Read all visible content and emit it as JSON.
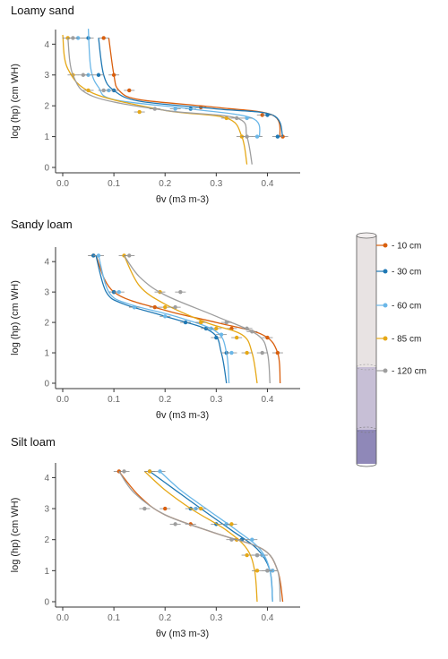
{
  "chart_data": [
    {
      "type": "line",
      "title": "Loamy sand",
      "xlabel": "θv (m3 m-3)",
      "ylabel": "log (hp) (cm WH)",
      "xlim": [
        0,
        0.45
      ],
      "ylim": [
        0,
        4.3
      ],
      "xticks": [
        "0.0",
        "0.1",
        "0.2",
        "0.3",
        "0.4"
      ],
      "yticks": [
        "0",
        "1",
        "2",
        "3",
        "4"
      ],
      "series": [
        {
          "name": "- 10 cm",
          "values": [
            [
              0.425,
              1.0
            ],
            [
              0.41,
              1.7
            ],
            [
              0.3,
              1.95
            ],
            [
              0.15,
              2.2
            ],
            [
              0.11,
              2.5
            ],
            [
              0.1,
              3.0
            ],
            [
              0.09,
              4.2
            ]
          ],
          "points": [
            [
              0.43,
              1.0
            ],
            [
              0.39,
              1.7
            ],
            [
              0.27,
              1.95
            ],
            [
              0.13,
              2.5
            ],
            [
              0.1,
              3.0
            ],
            [
              0.08,
              4.2
            ]
          ]
        },
        {
          "name": "- 30 cm",
          "values": [
            [
              0.43,
              1.0
            ],
            [
              0.41,
              1.7
            ],
            [
              0.3,
              1.9
            ],
            [
              0.15,
              2.15
            ],
            [
              0.1,
              2.5
            ],
            [
              0.08,
              3.0
            ],
            [
              0.07,
              4.2
            ]
          ],
          "points": [
            [
              0.42,
              1.0
            ],
            [
              0.4,
              1.7
            ],
            [
              0.25,
              1.9
            ],
            [
              0.1,
              2.5
            ],
            [
              0.07,
              3.0
            ],
            [
              0.05,
              4.2
            ]
          ]
        },
        {
          "name": "- 60 cm",
          "values": [
            [
              0.385,
              1.0
            ],
            [
              0.37,
              1.6
            ],
            [
              0.25,
              1.9
            ],
            [
              0.1,
              2.2
            ],
            [
              0.07,
              2.6
            ],
            [
              0.055,
              3.2
            ],
            [
              0.05,
              4.5
            ]
          ],
          "points": [
            [
              0.38,
              1.0
            ],
            [
              0.36,
              1.6
            ],
            [
              0.22,
              1.9
            ],
            [
              0.09,
              2.5
            ],
            [
              0.05,
              3.0
            ],
            [
              0.03,
              4.2
            ]
          ]
        },
        {
          "name": "- 85 cm",
          "values": [
            [
              0.36,
              0.1
            ],
            [
              0.35,
              1.0
            ],
            [
              0.32,
              1.6
            ],
            [
              0.2,
              1.85
            ],
            [
              0.06,
              2.4
            ],
            [
              0.01,
              3.2
            ],
            [
              0.0,
              4.3
            ]
          ],
          "points": [
            [
              0.35,
              1.0
            ],
            [
              0.32,
              1.6
            ],
            [
              0.15,
              1.8
            ],
            [
              0.05,
              2.5
            ],
            [
              0.02,
              3.0
            ],
            [
              0.01,
              4.2
            ]
          ]
        },
        {
          "name": "- 120 cm",
          "values": [
            [
              0.37,
              0.1
            ],
            [
              0.36,
              1.0
            ],
            [
              0.34,
              1.6
            ],
            [
              0.2,
              1.85
            ],
            [
              0.06,
              2.3
            ],
            [
              0.02,
              3.0
            ],
            [
              0.01,
              4.2
            ]
          ],
          "points": [
            [
              0.36,
              1.0
            ],
            [
              0.34,
              1.6
            ],
            [
              0.18,
              1.9
            ],
            [
              0.08,
              2.5
            ],
            [
              0.04,
              3.0
            ],
            [
              0.02,
              4.2
            ]
          ]
        }
      ]
    },
    {
      "type": "line",
      "title": "Sandy loam",
      "xlabel": "θv (m3 m-3)",
      "ylabel": "log (hp) (cm WH)",
      "xlim": [
        0,
        0.45
      ],
      "ylim": [
        0,
        4.3
      ],
      "xticks": [
        "0.0",
        "0.1",
        "0.2",
        "0.3",
        "0.4"
      ],
      "yticks": [
        "0",
        "1",
        "2",
        "3",
        "4"
      ],
      "series": [
        {
          "name": "- 10 cm",
          "values": [
            [
              0.425,
              0.0
            ],
            [
              0.42,
              1.0
            ],
            [
              0.39,
              1.6
            ],
            [
              0.3,
              2.0
            ],
            [
              0.2,
              2.4
            ],
            [
              0.1,
              3.0
            ],
            [
              0.065,
              4.2
            ]
          ],
          "points": [
            [
              0.42,
              1.0
            ],
            [
              0.4,
              1.5
            ],
            [
              0.33,
              1.8
            ],
            [
              0.27,
              2.0
            ],
            [
              0.18,
              2.5
            ],
            [
              0.1,
              3.0
            ],
            [
              0.06,
              4.2
            ]
          ]
        },
        {
          "name": "- 30 cm",
          "values": [
            [
              0.32,
              0.0
            ],
            [
              0.31,
              1.0
            ],
            [
              0.29,
              1.7
            ],
            [
              0.2,
              2.2
            ],
            [
              0.12,
              2.6
            ],
            [
              0.085,
              3.0
            ],
            [
              0.065,
              4.2
            ]
          ],
          "points": [
            [
              0.32,
              1.0
            ],
            [
              0.3,
              1.5
            ],
            [
              0.28,
              1.8
            ],
            [
              0.24,
              2.0
            ],
            [
              0.14,
              2.5
            ],
            [
              0.1,
              3.0
            ],
            [
              0.06,
              4.2
            ]
          ]
        },
        {
          "name": "- 60 cm",
          "values": [
            [
              0.325,
              0.0
            ],
            [
              0.32,
              1.0
            ],
            [
              0.3,
              1.7
            ],
            [
              0.22,
              2.2
            ],
            [
              0.13,
              2.6
            ],
            [
              0.09,
              3.0
            ],
            [
              0.07,
              4.2
            ]
          ],
          "points": [
            [
              0.33,
              1.0
            ],
            [
              0.31,
              1.6
            ],
            [
              0.29,
              1.8
            ],
            [
              0.2,
              2.2
            ],
            [
              0.14,
              2.5
            ],
            [
              0.11,
              3.0
            ],
            [
              0.07,
              4.2
            ]
          ]
        },
        {
          "name": "- 85 cm",
          "values": [
            [
              0.38,
              0.0
            ],
            [
              0.37,
              1.0
            ],
            [
              0.35,
              1.6
            ],
            [
              0.28,
              2.0
            ],
            [
              0.2,
              2.6
            ],
            [
              0.15,
              3.2
            ],
            [
              0.12,
              4.2
            ]
          ],
          "points": [
            [
              0.36,
              1.0
            ],
            [
              0.34,
              1.5
            ],
            [
              0.3,
              1.8
            ],
            [
              0.27,
              2.0
            ],
            [
              0.2,
              2.5
            ],
            [
              0.19,
              3.0
            ],
            [
              0.12,
              4.2
            ]
          ]
        },
        {
          "name": "- 120 cm",
          "values": [
            [
              0.405,
              0.0
            ],
            [
              0.4,
              1.0
            ],
            [
              0.38,
              1.6
            ],
            [
              0.3,
              2.2
            ],
            [
              0.2,
              2.9
            ],
            [
              0.15,
              3.5
            ],
            [
              0.12,
              4.2
            ]
          ],
          "points": [
            [
              0.39,
              1.0
            ],
            [
              0.37,
              1.7
            ],
            [
              0.36,
              1.8
            ],
            [
              0.32,
              2.0
            ],
            [
              0.22,
              2.5
            ],
            [
              0.23,
              3.0
            ],
            [
              0.13,
              4.2
            ]
          ]
        }
      ]
    },
    {
      "type": "line",
      "title": "Silt loam",
      "xlabel": "θv (m3 m-3)",
      "ylabel": "log (hp) (cm WH)",
      "xlim": [
        0,
        0.45
      ],
      "ylim": [
        0,
        4.3
      ],
      "xticks": [
        "0.0",
        "0.1",
        "0.2",
        "0.3",
        "0.4"
      ],
      "yticks": [
        "0",
        "1",
        "2",
        "3",
        "4"
      ],
      "series": [
        {
          "name": "- 10 cm",
          "values": [
            [
              0.43,
              0.0
            ],
            [
              0.42,
              1.0
            ],
            [
              0.39,
              1.7
            ],
            [
              0.3,
              2.2
            ],
            [
              0.2,
              2.8
            ],
            [
              0.15,
              3.4
            ],
            [
              0.11,
              4.2
            ]
          ],
          "points": [
            [
              0.41,
              1.0
            ],
            [
              0.39,
              1.5
            ],
            [
              0.34,
              2.0
            ],
            [
              0.25,
              2.5
            ],
            [
              0.2,
              3.0
            ],
            [
              0.11,
              4.2
            ]
          ]
        },
        {
          "name": "- 30 cm",
          "values": [
            [
              0.41,
              0.0
            ],
            [
              0.405,
              1.0
            ],
            [
              0.38,
              1.7
            ],
            [
              0.33,
              2.3
            ],
            [
              0.27,
              3.0
            ],
            [
              0.22,
              3.6
            ],
            [
              0.17,
              4.2
            ]
          ],
          "points": [
            [
              0.4,
              1.0
            ],
            [
              0.38,
              1.5
            ],
            [
              0.35,
              2.0
            ],
            [
              0.3,
              2.5
            ],
            [
              0.25,
              3.0
            ],
            [
              0.17,
              4.2
            ]
          ]
        },
        {
          "name": "- 60 cm",
          "values": [
            [
              0.41,
              0.0
            ],
            [
              0.405,
              1.0
            ],
            [
              0.385,
              1.7
            ],
            [
              0.34,
              2.3
            ],
            [
              0.28,
              3.0
            ],
            [
              0.23,
              3.6
            ],
            [
              0.19,
              4.2
            ]
          ],
          "points": [
            [
              0.41,
              1.0
            ],
            [
              0.39,
              1.5
            ],
            [
              0.37,
              2.0
            ],
            [
              0.32,
              2.5
            ],
            [
              0.26,
              3.0
            ],
            [
              0.19,
              4.2
            ]
          ]
        },
        {
          "name": "- 85 cm",
          "values": [
            [
              0.38,
              0.0
            ],
            [
              0.375,
              1.0
            ],
            [
              0.36,
              1.7
            ],
            [
              0.32,
              2.3
            ],
            [
              0.25,
              3.0
            ],
            [
              0.2,
              3.6
            ],
            [
              0.16,
              4.2
            ]
          ],
          "points": [
            [
              0.38,
              1.0
            ],
            [
              0.36,
              1.5
            ],
            [
              0.34,
              2.0
            ],
            [
              0.33,
              2.5
            ],
            [
              0.27,
              3.0
            ],
            [
              0.17,
              4.2
            ]
          ]
        },
        {
          "name": "- 120 cm",
          "values": [
            [
              0.425,
              0.0
            ],
            [
              0.42,
              1.0
            ],
            [
              0.39,
              1.7
            ],
            [
              0.3,
              2.2
            ],
            [
              0.2,
              2.8
            ],
            [
              0.14,
              3.5
            ],
            [
              0.11,
              4.2
            ]
          ],
          "points": [
            [
              0.4,
              1.0
            ],
            [
              0.38,
              1.5
            ],
            [
              0.33,
              2.0
            ],
            [
              0.22,
              2.5
            ],
            [
              0.16,
              3.0
            ],
            [
              0.12,
              4.2
            ]
          ]
        }
      ]
    }
  ],
  "legend": {
    "placement": "right",
    "entries": [
      {
        "label": "- 10 cm",
        "color": "#d95f0e"
      },
      {
        "label": "- 30 cm",
        "color": "#1f78b4"
      },
      {
        "label": "- 60 cm",
        "color": "#6bb7e8"
      },
      {
        "label": "- 85 cm",
        "color": "#e6a817"
      },
      {
        "label": "- 120 cm",
        "color": "#9e9e9e"
      }
    ]
  },
  "colors": {
    "column_top": "#e8e3e3",
    "column_mid": "#c7bfd6",
    "column_bottom": "#8f88b8",
    "errorbar": "#888888"
  }
}
